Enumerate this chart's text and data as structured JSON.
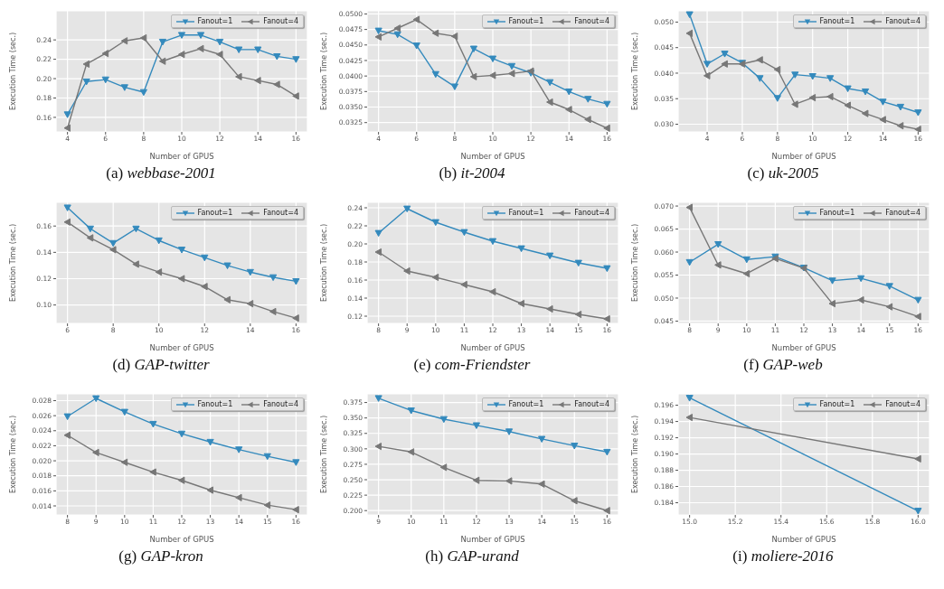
{
  "chart_data": [
    {
      "type": "line",
      "title": "(a) webbase-2001",
      "xlabel": "Number of GPUS",
      "ylabel": "Execution Time (sec.)",
      "x": [
        4,
        5,
        6,
        7,
        8,
        9,
        10,
        11,
        12,
        13,
        14,
        15,
        16
      ],
      "xlim": [
        3.4,
        16.6
      ],
      "xticks": [
        4,
        6,
        8,
        10,
        12,
        14,
        16
      ],
      "ylim": [
        0.145,
        0.27
      ],
      "yticks": [
        0.16,
        0.18,
        {
          "value": 0.2,
          "label": "0.20"
        },
        0.22,
        0.24
      ],
      "grid": true,
      "legend": "top right",
      "marker": "triangle",
      "line_style": "solid",
      "series": [
        {
          "name": "Fanout=1",
          "color": "#348abd",
          "values": [
            0.163,
            0.197,
            0.199,
            0.191,
            0.186,
            0.238,
            0.245,
            0.245,
            0.238,
            0.23,
            0.23,
            0.223,
            0.22
          ]
        },
        {
          "name": "Fanout=4",
          "color": "#777777",
          "values": [
            0.149,
            0.215,
            0.226,
            0.239,
            0.242,
            0.218,
            0.225,
            0.231,
            0.225,
            0.202,
            0.198,
            0.194,
            0.182
          ]
        }
      ]
    },
    {
      "type": "line",
      "title": "(b) it-2004",
      "xlabel": "Number of GPUS",
      "ylabel": "Execution Time (sec.)",
      "x": [
        4,
        5,
        6,
        7,
        8,
        9,
        10,
        11,
        12,
        13,
        14,
        15,
        16
      ],
      "xlim": [
        3.4,
        16.6
      ],
      "xticks": [
        4,
        6,
        8,
        10,
        12,
        14,
        16
      ],
      "ylim": [
        0.031,
        0.0505
      ],
      "yticks": [
        {
          "value": 0.0325,
          "label": "0.0325"
        },
        {
          "value": 0.035,
          "label": "0.0350"
        },
        {
          "value": 0.0375,
          "label": "0.0375"
        },
        {
          "value": 0.04,
          "label": "0.0400"
        },
        {
          "value": 0.0425,
          "label": "0.0425"
        },
        {
          "value": 0.045,
          "label": "0.0450"
        },
        {
          "value": 0.0475,
          "label": "0.0475"
        },
        {
          "value": 0.05,
          "label": "0.0500"
        }
      ],
      "grid": true,
      "legend": "top right",
      "marker": "triangle",
      "line_style": "solid",
      "series": [
        {
          "name": "Fanout=1",
          "color": "#348abd",
          "values": [
            0.0473,
            0.0467,
            0.0449,
            0.0403,
            0.0383,
            0.0444,
            0.0428,
            0.0416,
            0.0405,
            0.039,
            0.0375,
            0.0363,
            0.0355
          ]
        },
        {
          "name": "Fanout=4",
          "color": "#777777",
          "values": [
            0.0463,
            0.0477,
            0.0491,
            0.0469,
            0.0464,
            0.0399,
            0.0401,
            0.0404,
            0.0408,
            0.0358,
            0.0346,
            0.033,
            0.0316
          ]
        }
      ]
    },
    {
      "type": "line",
      "title": "(c) uk-2005",
      "xlabel": "Number of GPUS",
      "ylabel": "Execution Time (sec.)",
      "x": [
        3,
        4,
        5,
        6,
        7,
        8,
        9,
        10,
        11,
        12,
        13,
        14,
        15,
        16
      ],
      "xlim": [
        2.35,
        16.65
      ],
      "xticks": [
        4,
        6,
        8,
        10,
        12,
        14,
        16
      ],
      "ylim": [
        0.0285,
        0.0522
      ],
      "yticks": [
        {
          "value": 0.03,
          "label": "0.030"
        },
        {
          "value": 0.035,
          "label": "0.035"
        },
        {
          "value": 0.04,
          "label": "0.040"
        },
        {
          "value": 0.045,
          "label": "0.045"
        },
        {
          "value": 0.05,
          "label": "0.050"
        }
      ],
      "grid": true,
      "legend": "top right",
      "marker": "triangle",
      "line_style": "solid",
      "series": [
        {
          "name": "Fanout=1",
          "color": "#348abd",
          "values": [
            0.0515,
            0.0418,
            0.0438,
            0.042,
            0.039,
            0.0351,
            0.0397,
            0.0394,
            0.039,
            0.037,
            0.0364,
            0.0344,
            0.0334,
            0.0323
          ]
        },
        {
          "name": "Fanout=4",
          "color": "#777777",
          "values": [
            0.0478,
            0.0395,
            0.0418,
            0.0418,
            0.0426,
            0.0407,
            0.0339,
            0.0352,
            0.0354,
            0.0337,
            0.0321,
            0.0309,
            0.0297,
            0.029
          ]
        }
      ]
    },
    {
      "type": "line",
      "title": "(d) GAP-twitter",
      "xlabel": "Number of GPUS",
      "ylabel": "Execution Time (sec.)",
      "x": [
        6,
        7,
        8,
        9,
        10,
        11,
        12,
        13,
        14,
        15,
        16
      ],
      "xlim": [
        5.5,
        16.5
      ],
      "xticks": [
        6,
        8,
        10,
        12,
        14,
        16
      ],
      "ylim": [
        0.086,
        0.178
      ],
      "yticks": [
        {
          "value": 0.1,
          "label": "0.10"
        },
        0.12,
        0.14,
        0.16
      ],
      "grid": true,
      "legend": "top right",
      "marker": "triangle",
      "line_style": "solid",
      "series": [
        {
          "name": "Fanout=1",
          "color": "#348abd",
          "values": [
            0.174,
            0.158,
            0.147,
            0.158,
            0.149,
            0.142,
            0.136,
            0.13,
            0.125,
            0.121,
            0.118
          ]
        },
        {
          "name": "Fanout=4",
          "color": "#777777",
          "values": [
            0.163,
            0.151,
            0.142,
            0.131,
            0.125,
            0.12,
            0.114,
            0.104,
            0.101,
            0.095,
            0.09
          ]
        }
      ]
    },
    {
      "type": "line",
      "title": "(e) com-Friendster",
      "xlabel": "Number of GPUS",
      "ylabel": "Execution Time (sec.)",
      "x": [
        8,
        9,
        10,
        11,
        12,
        13,
        14,
        15,
        16
      ],
      "xlim": [
        7.6,
        16.4
      ],
      "xticks": [
        8,
        9,
        10,
        11,
        12,
        13,
        14,
        15,
        16
      ],
      "ylim": [
        0.112,
        0.246
      ],
      "yticks": [
        0.12,
        0.14,
        0.16,
        0.18,
        {
          "value": 0.2,
          "label": "0.20"
        },
        0.22,
        0.24
      ],
      "grid": true,
      "legend": "top right",
      "marker": "triangle",
      "line_style": "solid",
      "series": [
        {
          "name": "Fanout=1",
          "color": "#348abd",
          "values": [
            0.212,
            0.239,
            0.224,
            0.213,
            0.203,
            0.195,
            0.187,
            0.179,
            0.173
          ]
        },
        {
          "name": "Fanout=4",
          "color": "#777777",
          "values": [
            0.191,
            0.17,
            0.163,
            0.155,
            0.147,
            0.134,
            0.128,
            0.122,
            0.117
          ]
        }
      ]
    },
    {
      "type": "line",
      "title": "(f) GAP-web",
      "xlabel": "Number of GPUS",
      "ylabel": "Execution Time (sec.)",
      "x": [
        8,
        9,
        10,
        11,
        12,
        13,
        14,
        15,
        16
      ],
      "xlim": [
        7.6,
        16.4
      ],
      "xticks": [
        8,
        9,
        10,
        11,
        12,
        13,
        14,
        15,
        16
      ],
      "ylim": [
        0.0445,
        0.0708
      ],
      "yticks": [
        0.045,
        {
          "value": 0.05,
          "label": "0.050"
        },
        0.055,
        {
          "value": 0.06,
          "label": "0.060"
        },
        0.065,
        {
          "value": 0.07,
          "label": "0.070"
        }
      ],
      "grid": true,
      "legend": "top right",
      "marker": "triangle",
      "line_style": "solid",
      "series": [
        {
          "name": "Fanout=1",
          "color": "#348abd",
          "values": [
            0.0578,
            0.0617,
            0.0584,
            0.059,
            0.0566,
            0.0538,
            0.0543,
            0.0526,
            0.0496
          ]
        },
        {
          "name": "Fanout=4",
          "color": "#777777",
          "values": [
            0.0697,
            0.0572,
            0.0553,
            0.0586,
            0.0565,
            0.0488,
            0.0496,
            0.0481,
            0.046
          ]
        }
      ]
    },
    {
      "type": "line",
      "title": "(g) GAP-kron",
      "xlabel": "Number of GPUS",
      "ylabel": "Execution Time (sec.)",
      "x": [
        8,
        9,
        10,
        11,
        12,
        13,
        14,
        15,
        16
      ],
      "xlim": [
        7.6,
        16.4
      ],
      "xticks": [
        8,
        9,
        10,
        11,
        12,
        13,
        14,
        15,
        16
      ],
      "ylim": [
        0.0128,
        0.0289
      ],
      "yticks": [
        0.014,
        0.016,
        0.018,
        {
          "value": 0.02,
          "label": "0.020"
        },
        0.022,
        0.024,
        0.026,
        0.028
      ],
      "grid": true,
      "legend": "top right",
      "marker": "triangle",
      "line_style": "solid",
      "series": [
        {
          "name": "Fanout=1",
          "color": "#348abd",
          "values": [
            0.0259,
            0.0283,
            0.0265,
            0.0249,
            0.0236,
            0.0225,
            0.0215,
            0.0206,
            0.0198
          ]
        },
        {
          "name": "Fanout=4",
          "color": "#777777",
          "values": [
            0.0234,
            0.0211,
            0.0198,
            0.0185,
            0.0174,
            0.0161,
            0.0151,
            0.0141,
            0.0135
          ]
        }
      ]
    },
    {
      "type": "line",
      "title": "(h) GAP-urand",
      "xlabel": "Number of GPUS",
      "ylabel": "Execution Time (sec.)",
      "x": [
        9,
        10,
        11,
        12,
        13,
        14,
        15,
        16
      ],
      "xlim": [
        8.65,
        16.35
      ],
      "xticks": [
        9,
        10,
        11,
        12,
        13,
        14,
        15,
        16
      ],
      "ylim": [
        0.193,
        0.389
      ],
      "yticks": [
        {
          "value": 0.2,
          "label": "0.200"
        },
        0.225,
        {
          "value": 0.25,
          "label": "0.250"
        },
        0.275,
        {
          "value": 0.3,
          "label": "0.300"
        },
        0.325,
        {
          "value": 0.35,
          "label": "0.350"
        },
        0.375
      ],
      "grid": true,
      "legend": "top right",
      "marker": "triangle",
      "line_style": "solid",
      "series": [
        {
          "name": "Fanout=1",
          "color": "#348abd",
          "values": [
            0.382,
            0.362,
            0.348,
            0.338,
            0.328,
            0.316,
            0.305,
            0.295
          ]
        },
        {
          "name": "Fanout=4",
          "color": "#777777",
          "values": [
            0.304,
            0.295,
            0.27,
            0.249,
            0.248,
            0.243,
            0.216,
            0.2
          ]
        }
      ]
    },
    {
      "type": "line",
      "title": "(i) moliere-2016",
      "xlabel": "Number of GPUS",
      "ylabel": "Execution Time (sec.)",
      "x": [
        15,
        16
      ],
      "xlim": [
        14.95,
        16.05
      ],
      "xticks": [
        {
          "value": 15,
          "label": "15.0"
        },
        15.2,
        15.4,
        15.6,
        15.8,
        {
          "value": 16,
          "label": "16.0"
        }
      ],
      "ylim": [
        0.1825,
        0.1974
      ],
      "yticks": [
        0.184,
        0.186,
        0.188,
        {
          "value": 0.19,
          "label": "0.190"
        },
        0.192,
        0.194,
        0.196
      ],
      "grid": true,
      "legend": "top right",
      "marker": "triangle",
      "line_style": "solid",
      "series": [
        {
          "name": "Fanout=1",
          "color": "#348abd",
          "values": [
            0.1969,
            0.183
          ]
        },
        {
          "name": "Fanout=4",
          "color": "#777777",
          "values": [
            0.1945,
            0.1894
          ]
        }
      ]
    }
  ]
}
